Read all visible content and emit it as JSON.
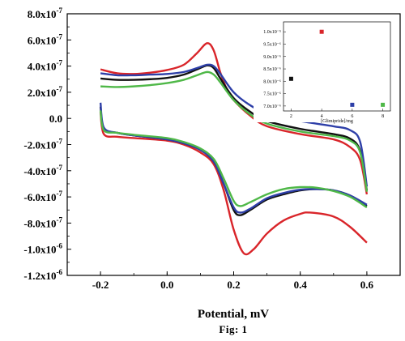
{
  "chart_data": [
    {
      "type": "line",
      "xlabel": "Potential, mV",
      "caption": "Fig: 1",
      "xlim": [
        -0.3,
        0.7
      ],
      "ylim": [
        -1.2e-06,
        8e-07
      ],
      "x_ticks": [
        "-0.2",
        "0.0",
        "0.2",
        "0.4",
        "0.6"
      ],
      "y_ticks": [
        {
          "mant": "8.0x10",
          "exp": "-7"
        },
        {
          "mant": "6.0x10",
          "exp": "-7"
        },
        {
          "mant": "4.0x10",
          "exp": "-7"
        },
        {
          "mant": "2.0x10",
          "exp": "-7"
        },
        {
          "mant": "0.0",
          "exp": ""
        },
        {
          "mant": "-2.0x10",
          "exp": "-7"
        },
        {
          "mant": "-4.0x10",
          "exp": "-7"
        },
        {
          "mant": "-6.0x10",
          "exp": "-7"
        },
        {
          "mant": "-8.0x10",
          "exp": "-7"
        },
        {
          "mant": "-1.0x10",
          "exp": "-6"
        },
        {
          "mant": "-1.2x10",
          "exp": "-6"
        }
      ],
      "series": [
        {
          "color": "#d9252a",
          "upper": [
            [
              -0.2,
              3.75e-07
            ],
            [
              -0.15,
              3.45e-07
            ],
            [
              -0.1,
              3.4e-07
            ],
            [
              -0.05,
              3.5e-07
            ],
            [
              0.0,
              3.7e-07
            ],
            [
              0.05,
              4.1e-07
            ],
            [
              0.09,
              5e-07
            ],
            [
              0.12,
              5.75e-07
            ],
            [
              0.14,
              5.2e-07
            ],
            [
              0.16,
              3.5e-07
            ],
            [
              0.18,
              2.2e-07
            ],
            [
              0.2,
              1.4e-07
            ],
            [
              0.25,
              2e-08
            ],
            [
              0.3,
              -6e-08
            ],
            [
              0.4,
              -1.2e-07
            ],
            [
              0.5,
              -1.6e-07
            ],
            [
              0.55,
              -2.2e-07
            ],
            [
              0.58,
              -3.2e-07
            ],
            [
              0.6,
              -5.8e-07
            ]
          ],
          "lower": [
            [
              -0.2,
              5e-08
            ],
            [
              -0.19,
              -1.2e-07
            ],
            [
              -0.15,
              -1.4e-07
            ],
            [
              -0.1,
              -1.5e-07
            ],
            [
              0.0,
              -1.7e-07
            ],
            [
              0.05,
              -2e-07
            ],
            [
              0.1,
              -2.6e-07
            ],
            [
              0.14,
              -3.5e-07
            ],
            [
              0.17,
              -5.5e-07
            ],
            [
              0.2,
              -8.5e-07
            ],
            [
              0.23,
              -1.03e-06
            ],
            [
              0.26,
              -1e-06
            ],
            [
              0.3,
              -8.8e-07
            ],
            [
              0.35,
              -7.8e-07
            ],
            [
              0.4,
              -7.3e-07
            ],
            [
              0.43,
              -7.2e-07
            ],
            [
              0.5,
              -7.5e-07
            ],
            [
              0.55,
              -8.3e-07
            ],
            [
              0.6,
              -9.5e-07
            ]
          ]
        },
        {
          "color": "#111111",
          "upper": [
            [
              -0.2,
              3.05e-07
            ],
            [
              -0.15,
              2.95e-07
            ],
            [
              -0.1,
              2.95e-07
            ],
            [
              -0.05,
              3e-07
            ],
            [
              0.0,
              3.1e-07
            ],
            [
              0.05,
              3.35e-07
            ],
            [
              0.09,
              3.75e-07
            ],
            [
              0.12,
              4.05e-07
            ],
            [
              0.14,
              3.85e-07
            ],
            [
              0.16,
              3.05e-07
            ],
            [
              0.2,
              1.55e-07
            ],
            [
              0.25,
              5e-08
            ],
            [
              0.3,
              -2e-08
            ],
            [
              0.4,
              -8e-08
            ],
            [
              0.5,
              -1.2e-07
            ],
            [
              0.55,
              -1.55e-07
            ],
            [
              0.58,
              -2.5e-07
            ],
            [
              0.6,
              -5.5e-07
            ]
          ],
          "lower": [
            [
              -0.2,
              9e-08
            ],
            [
              -0.19,
              -8e-08
            ],
            [
              -0.15,
              -1.1e-07
            ],
            [
              -0.1,
              -1.3e-07
            ],
            [
              0.0,
              -1.6e-07
            ],
            [
              0.05,
              -1.9e-07
            ],
            [
              0.1,
              -2.4e-07
            ],
            [
              0.14,
              -3.3e-07
            ],
            [
              0.17,
              -5e-07
            ],
            [
              0.2,
              -7e-07
            ],
            [
              0.22,
              -7.4e-07
            ],
            [
              0.25,
              -7e-07
            ],
            [
              0.3,
              -6.2e-07
            ],
            [
              0.35,
              -5.8e-07
            ],
            [
              0.4,
              -5.5e-07
            ],
            [
              0.45,
              -5.4e-07
            ],
            [
              0.5,
              -5.5e-07
            ],
            [
              0.55,
              -5.9e-07
            ],
            [
              0.6,
              -6.7e-07
            ]
          ]
        },
        {
          "color": "#2e3fa8",
          "upper": [
            [
              -0.2,
              3.45e-07
            ],
            [
              -0.15,
              3.3e-07
            ],
            [
              -0.1,
              3.3e-07
            ],
            [
              -0.05,
              3.35e-07
            ],
            [
              0.0,
              3.4e-07
            ],
            [
              0.05,
              3.55e-07
            ],
            [
              0.09,
              3.85e-07
            ],
            [
              0.12,
              4.1e-07
            ],
            [
              0.14,
              4e-07
            ],
            [
              0.16,
              3.4e-07
            ],
            [
              0.2,
              2e-07
            ],
            [
              0.25,
              1e-07
            ],
            [
              0.3,
              4e-08
            ],
            [
              0.4,
              -2e-08
            ],
            [
              0.5,
              -6e-08
            ],
            [
              0.55,
              -9e-08
            ],
            [
              0.58,
              -1.8e-07
            ],
            [
              0.6,
              -5.2e-07
            ]
          ],
          "lower": [
            [
              -0.2,
              1.2e-07
            ],
            [
              -0.19,
              -7e-08
            ],
            [
              -0.15,
              -1.1e-07
            ],
            [
              -0.1,
              -1.3e-07
            ],
            [
              0.0,
              -1.6e-07
            ],
            [
              0.05,
              -1.9e-07
            ],
            [
              0.1,
              -2.4e-07
            ],
            [
              0.14,
              -3.3e-07
            ],
            [
              0.17,
              -5e-07
            ],
            [
              0.2,
              -6.8e-07
            ],
            [
              0.22,
              -7.2e-07
            ],
            [
              0.25,
              -6.9e-07
            ],
            [
              0.3,
              -6.1e-07
            ],
            [
              0.35,
              -5.7e-07
            ],
            [
              0.4,
              -5.45e-07
            ],
            [
              0.45,
              -5.4e-07
            ],
            [
              0.5,
              -5.5e-07
            ],
            [
              0.55,
              -5.9e-07
            ],
            [
              0.6,
              -6.6e-07
            ]
          ]
        },
        {
          "color": "#4fb848",
          "upper": [
            [
              -0.2,
              2.45e-07
            ],
            [
              -0.15,
              2.4e-07
            ],
            [
              -0.1,
              2.45e-07
            ],
            [
              -0.05,
              2.55e-07
            ],
            [
              0.0,
              2.7e-07
            ],
            [
              0.05,
              2.95e-07
            ],
            [
              0.09,
              3.3e-07
            ],
            [
              0.12,
              3.55e-07
            ],
            [
              0.14,
              3.35e-07
            ],
            [
              0.16,
              2.75e-07
            ],
            [
              0.2,
              1.4e-07
            ],
            [
              0.25,
              3e-08
            ],
            [
              0.3,
              -4e-08
            ],
            [
              0.4,
              -1e-07
            ],
            [
              0.5,
              -1.35e-07
            ],
            [
              0.55,
              -1.7e-07
            ],
            [
              0.58,
              -2.6e-07
            ],
            [
              0.6,
              -5.6e-07
            ]
          ],
          "lower": [
            [
              -0.2,
              6e-08
            ],
            [
              -0.19,
              -9e-08
            ],
            [
              -0.15,
              -1.1e-07
            ],
            [
              -0.1,
              -1.25e-07
            ],
            [
              0.0,
              -1.5e-07
            ],
            [
              0.05,
              -1.8e-07
            ],
            [
              0.1,
              -2.3e-07
            ],
            [
              0.14,
              -3.1e-07
            ],
            [
              0.17,
              -4.6e-07
            ],
            [
              0.2,
              -6.3e-07
            ],
            [
              0.22,
              -6.7e-07
            ],
            [
              0.25,
              -6.4e-07
            ],
            [
              0.3,
              -5.8e-07
            ],
            [
              0.35,
              -5.4e-07
            ],
            [
              0.4,
              -5.25e-07
            ],
            [
              0.45,
              -5.3e-07
            ],
            [
              0.5,
              -5.55e-07
            ],
            [
              0.55,
              -6e-07
            ],
            [
              0.6,
              -6.8e-07
            ]
          ]
        }
      ]
    },
    {
      "type": "scatter",
      "xlabel": "[Glimipride]/mg",
      "xlim": [
        1.5,
        8.5
      ],
      "ylim": [
        6.8e-06,
        1.04e-05
      ],
      "x_ticks": [
        "2",
        "4",
        "6",
        "8"
      ],
      "y_ticks": [
        "1.0x10⁻⁵",
        "9.5x10⁻⁶",
        "9.0x10⁻⁶",
        "8.5x10⁻⁶",
        "8.0x10⁻⁶",
        "7.5x10⁻⁶",
        "7.0x10⁻⁶"
      ],
      "points": [
        {
          "x": 2,
          "y": 8.1e-06,
          "color": "#111111"
        },
        {
          "x": 4,
          "y": 1e-05,
          "color": "#d9252a"
        },
        {
          "x": 6,
          "y": 7.05e-06,
          "color": "#2e3fa8"
        },
        {
          "x": 8,
          "y": 7.05e-06,
          "color": "#4fb848"
        }
      ]
    }
  ]
}
